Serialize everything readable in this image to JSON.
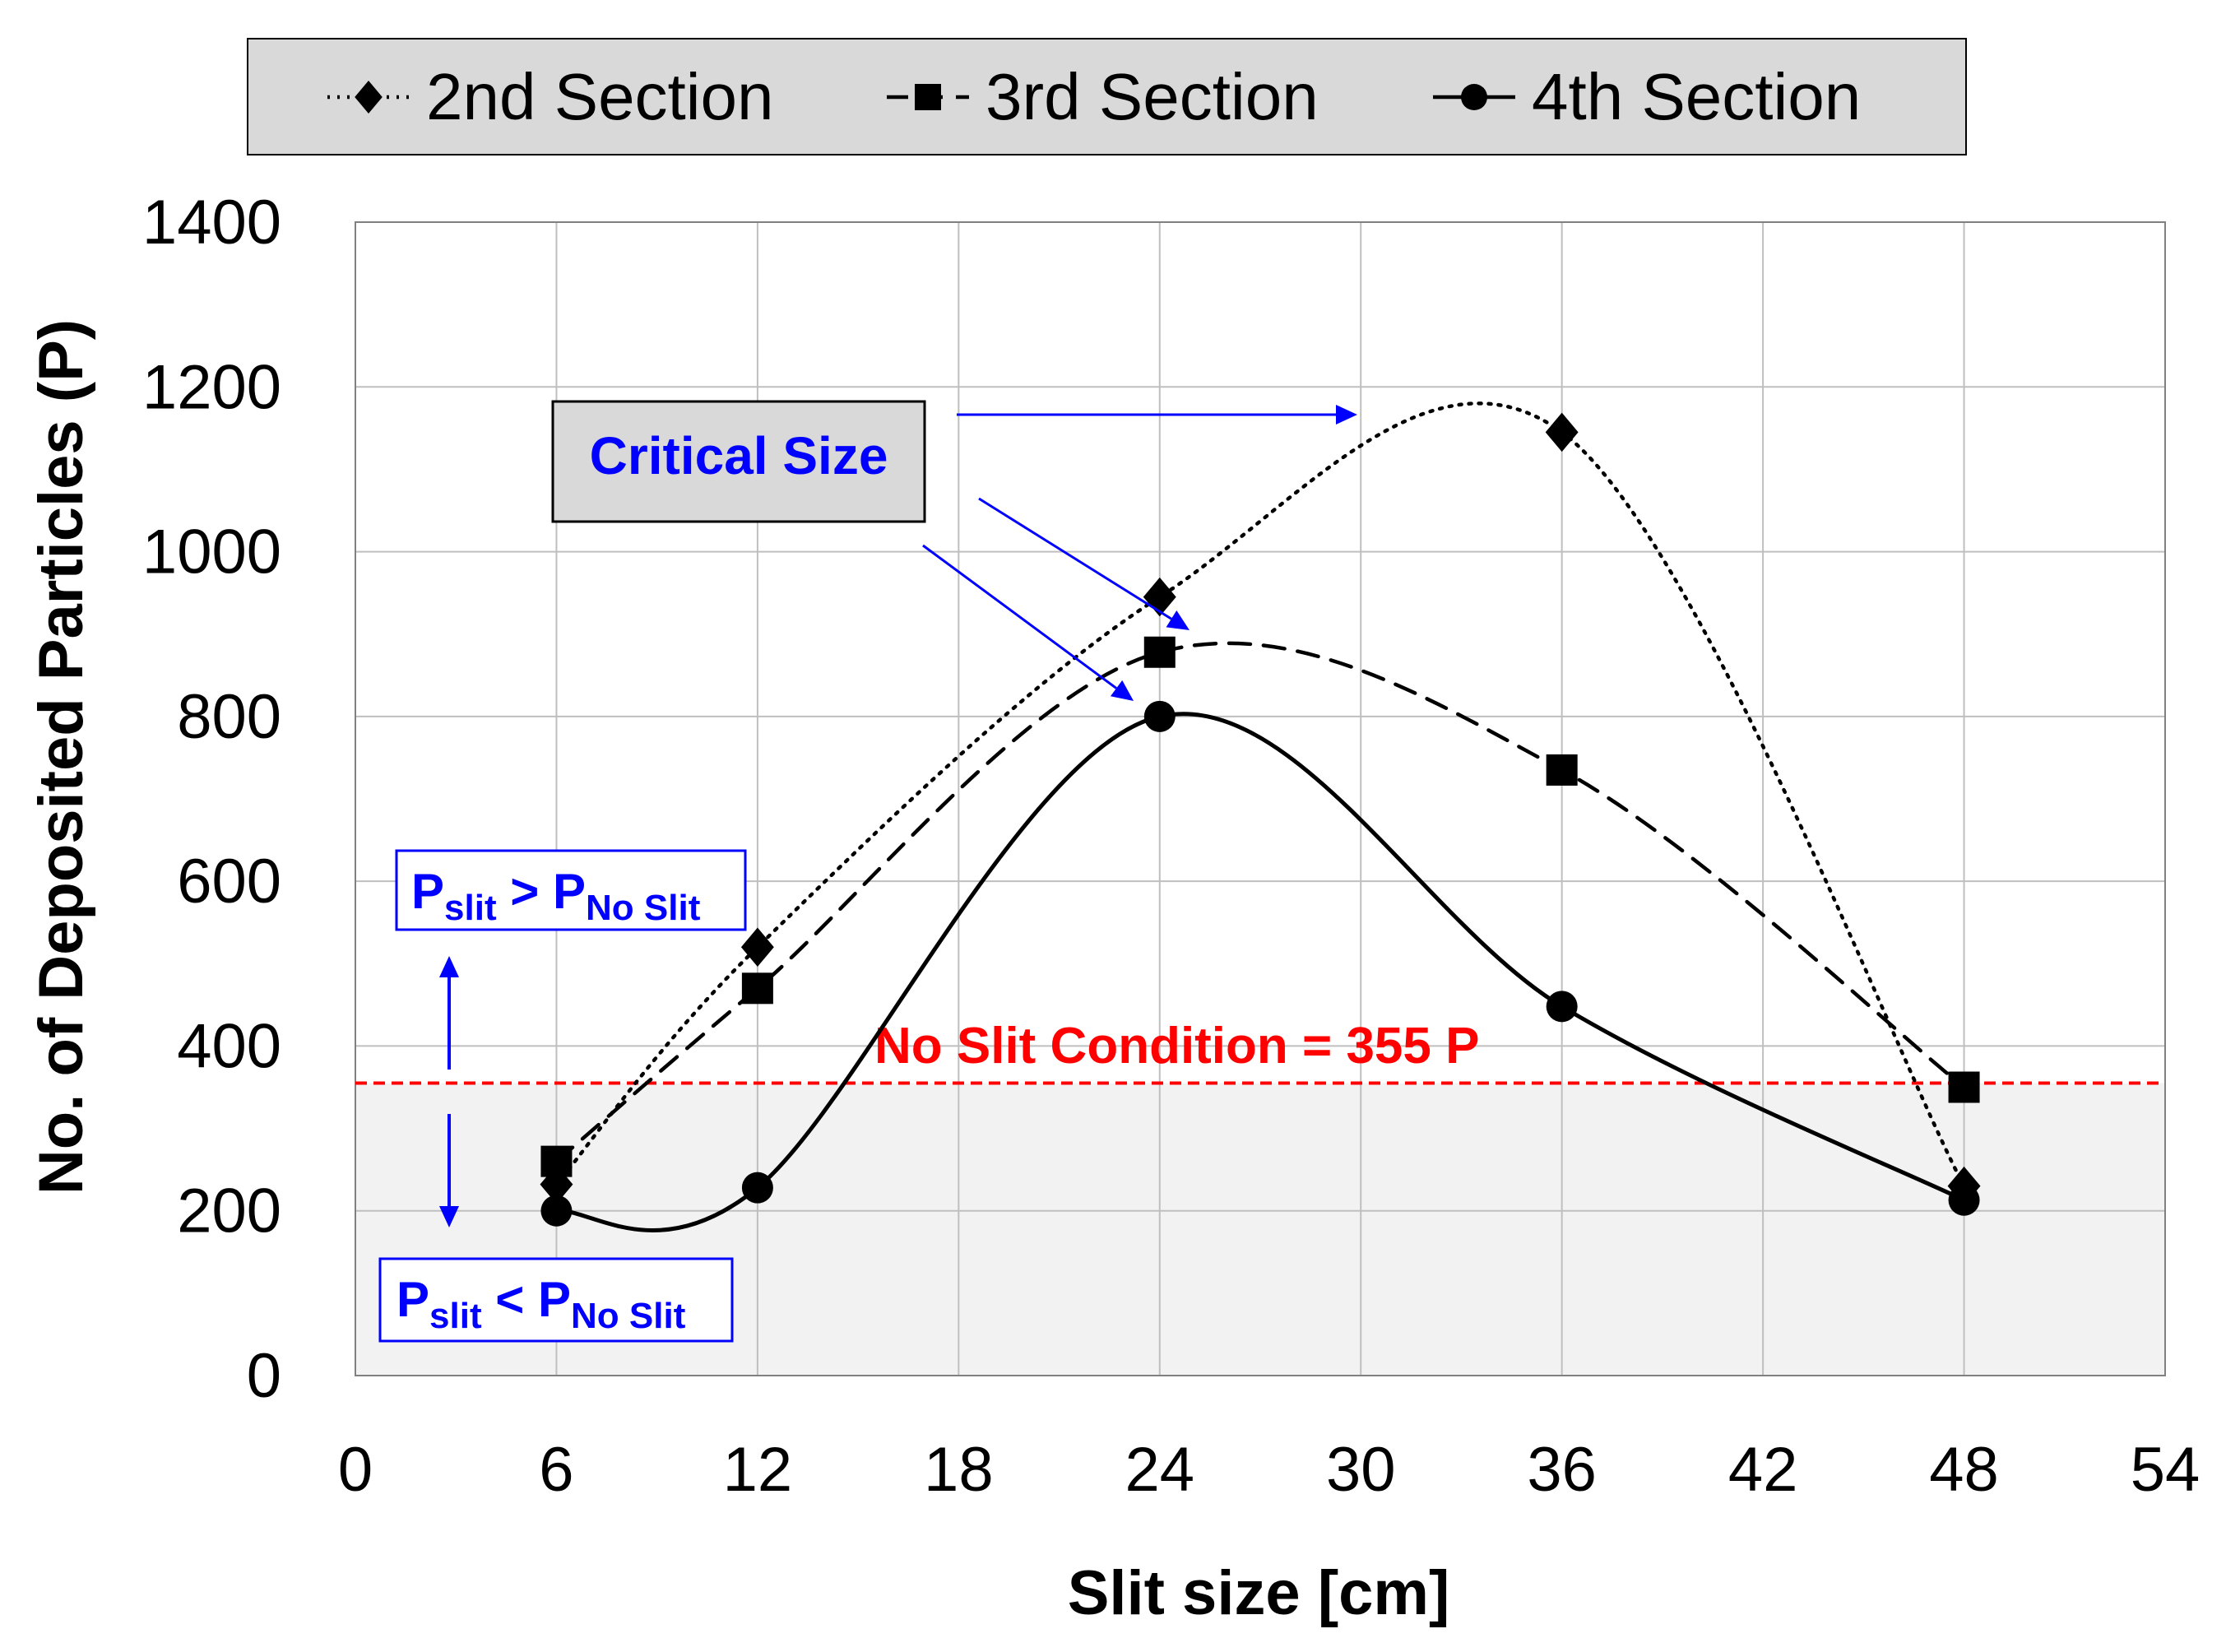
{
  "chart_data": {
    "type": "line",
    "xlabel": "Slit size [cm]",
    "ylabel": "No. of Deposited Particles (P)",
    "xlim": [
      0,
      54
    ],
    "ylim": [
      0,
      1400
    ],
    "xticks": [
      0,
      6,
      12,
      18,
      24,
      30,
      36,
      42,
      48,
      54
    ],
    "yticks": [
      0,
      200,
      400,
      600,
      800,
      1000,
      1200,
      1400
    ],
    "grid": true,
    "legend_position": "top",
    "x": [
      6,
      12,
      24,
      36,
      48
    ],
    "series": [
      {
        "name": "2nd Section",
        "values": [
          232,
          520,
          945,
          1145,
          230
        ],
        "line_style": "dotted",
        "marker": "diamond",
        "color": "#000000"
      },
      {
        "name": "3rd Section",
        "values": [
          260,
          470,
          878,
          735,
          350
        ],
        "line_style": "dashed",
        "marker": "square",
        "color": "#000000"
      },
      {
        "name": "4th Section",
        "values": [
          200,
          228,
          800,
          448,
          213
        ],
        "line_style": "solid",
        "marker": "circle",
        "color": "#000000"
      }
    ],
    "reference_line": {
      "value": 355,
      "label": "No Slit Condition = 355 P",
      "color": "#ff0000"
    },
    "annotations": {
      "critical_size": "Critical Size",
      "above": {
        "main": "P",
        "sub1": "slit",
        "rel": " > P",
        "sub2": "No Slit"
      },
      "below": {
        "main": "P",
        "sub1": "slit",
        "rel": " < P",
        "sub2": "No Slit"
      }
    },
    "colors": {
      "annotation": "#0000ff",
      "reference": "#ff0000",
      "below_region": "#f2f2f2",
      "legend_bg": "#d9d9d9",
      "grid": "#bfbfbf"
    }
  }
}
